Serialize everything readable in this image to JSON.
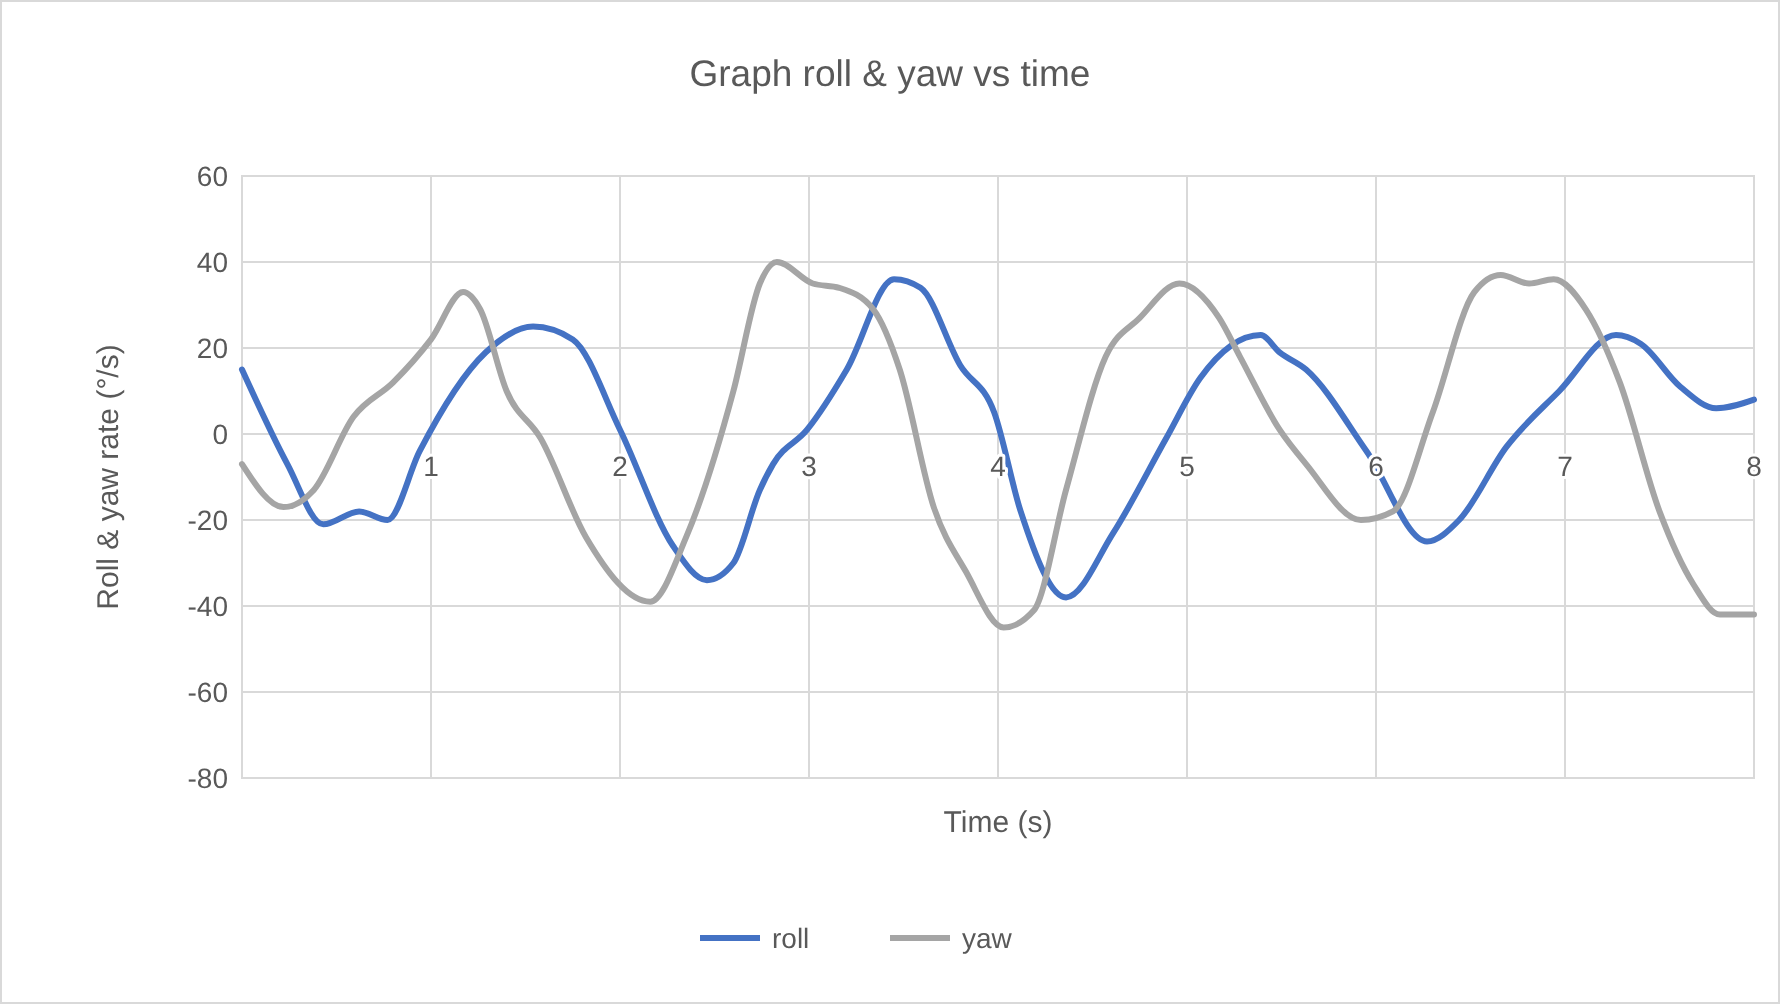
{
  "chart_data": {
    "type": "line",
    "title": "Graph roll & yaw vs time",
    "xlabel": "Time (s)",
    "ylabel": "Roll & yaw rate (°/s)",
    "xlim": [
      0,
      8
    ],
    "xticks": [
      1,
      2,
      3,
      4,
      5,
      6,
      7,
      8
    ],
    "ylim": [
      -80,
      60
    ],
    "yticks": [
      -80,
      -60,
      -40,
      -20,
      0,
      20,
      40,
      60
    ],
    "grid": true,
    "legend": "bottom",
    "marker": "none",
    "line_style": "solid",
    "series": [
      {
        "name": "roll",
        "color": "#4472c4",
        "x": [
          0,
          0.24,
          0.43,
          0.62,
          0.77,
          0.94,
          1.29,
          1.54,
          1.75,
          2.0,
          2.28,
          2.46,
          2.6,
          2.74,
          2.81,
          2.99,
          3.2,
          3.45,
          3.59,
          3.8,
          3.98,
          4.12,
          4.36,
          4.61,
          4.89,
          5.07,
          5.39,
          5.49,
          5.63,
          5.95,
          6.27,
          6.44,
          6.69,
          6.97,
          7.27,
          7.4,
          7.61,
          7.8,
          8.0
        ],
        "values": [
          15,
          -7,
          -21,
          -18,
          -20,
          -4,
          19,
          25,
          22,
          1,
          -26,
          -34,
          -30,
          -13,
          -7,
          1,
          15,
          36,
          34,
          16,
          5,
          -18,
          -38,
          -23,
          -1,
          13,
          23,
          19,
          15,
          -4,
          -25,
          -20,
          -3,
          10,
          23,
          21,
          11,
          6,
          8
        ]
      },
      {
        "name": "yaw",
        "color": "#a5a5a5",
        "x": [
          0,
          0.22,
          0.38,
          0.59,
          0.8,
          1.0,
          1.17,
          1.26,
          1.4,
          1.58,
          1.82,
          2.16,
          2.35,
          2.6,
          2.74,
          2.83,
          3.02,
          3.16,
          3.34,
          3.48,
          3.66,
          3.83,
          4.03,
          4.19,
          4.36,
          4.57,
          4.75,
          4.96,
          5.17,
          5.28,
          5.49,
          5.63,
          5.92,
          6.09,
          6.3,
          6.52,
          6.66,
          6.81,
          6.94,
          7.11,
          7.29,
          7.5,
          7.68,
          7.82,
          8.0
        ],
        "values": [
          -7,
          -17,
          -13,
          4,
          12,
          22,
          33,
          29,
          10,
          -1,
          -24,
          -39,
          -24,
          10,
          35,
          40,
          35,
          34,
          29,
          15,
          -17,
          -32,
          -45,
          -41,
          -13,
          18,
          27,
          35,
          27,
          18,
          1,
          -7,
          -20,
          -18,
          5,
          33,
          37,
          35,
          36,
          29,
          12,
          -18,
          -35,
          -42,
          -42
        ]
      }
    ]
  }
}
